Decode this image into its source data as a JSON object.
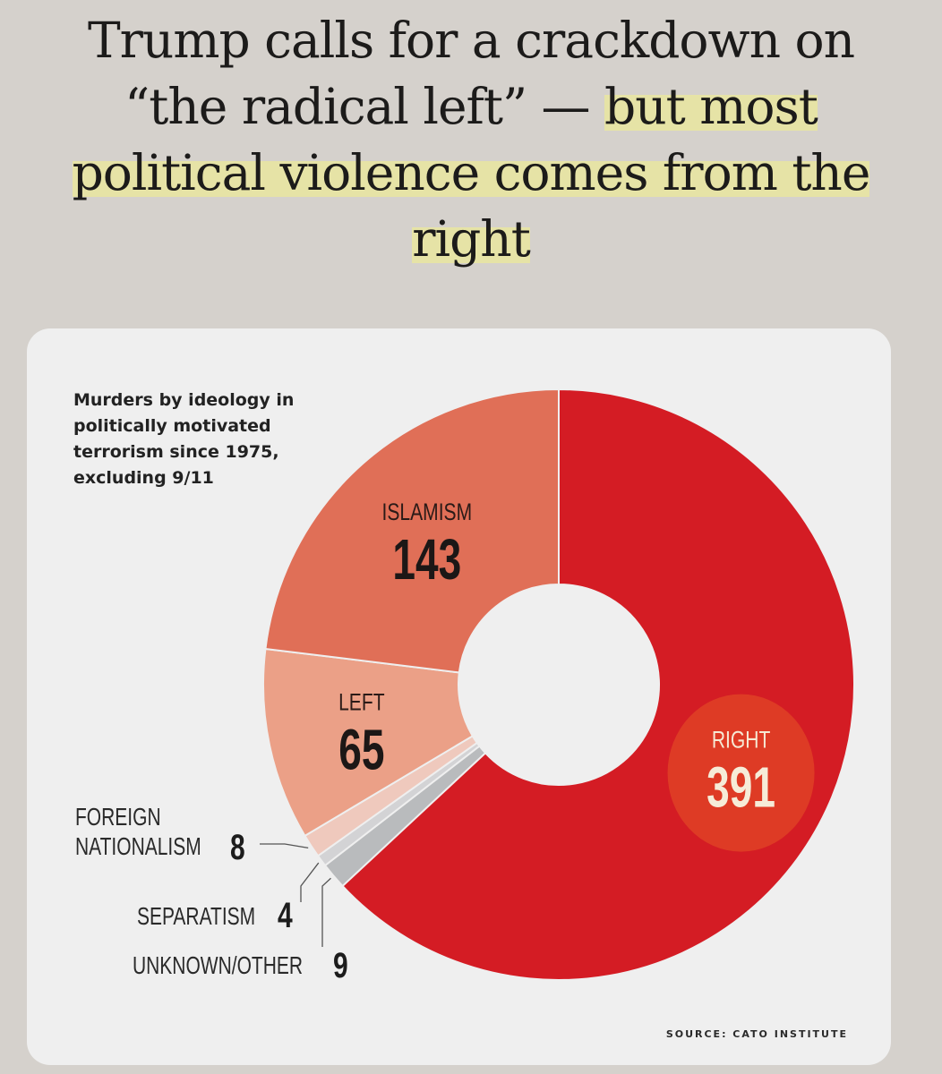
{
  "headline": {
    "part1": "Trump calls for a crackdown on “the radical left” — ",
    "part2": "but most political violence comes from the right"
  },
  "card": {
    "caption": "Murders by ideology in politically motivated terrorism since 1975, excluding 9/11",
    "source": "SOURCE: CATO INSTITUTE"
  },
  "chart_data": {
    "type": "pie",
    "donut": true,
    "title": "Murders by ideology in politically motivated terrorism since 1975, excluding 9/11",
    "categories": [
      "RIGHT",
      "UNKNOWN/OTHER",
      "SEPARATISM",
      "FOREIGN NATIONALISM",
      "LEFT",
      "ISLAMISM"
    ],
    "values": [
      391,
      9,
      4,
      8,
      65,
      143
    ],
    "colors": [
      "#d41c24",
      "#b9bbbd",
      "#d3d3d5",
      "#efc9bd",
      "#eba087",
      "#e06f57"
    ],
    "highlight": "RIGHT"
  }
}
